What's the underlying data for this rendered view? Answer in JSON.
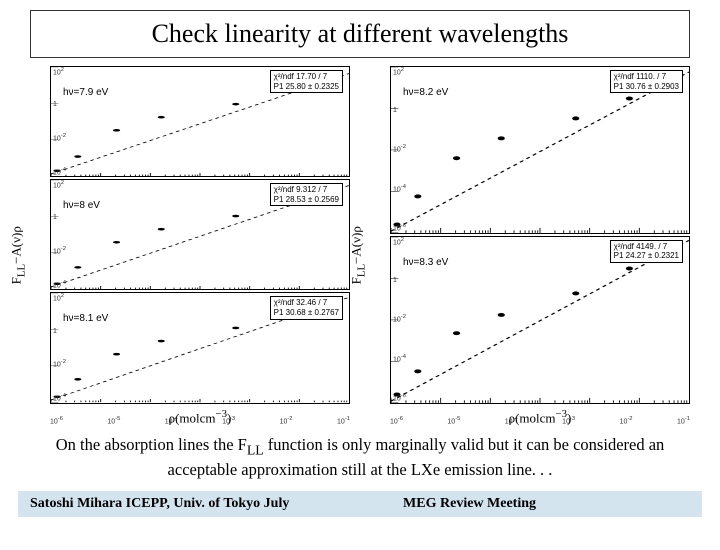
{
  "title": "Check linearity at different wavelengths",
  "ylabel_html": "F<sub>LL</sub>−A(ν)ρ",
  "xlabel_html": "ρ(molcm<sup>−3</sup>)",
  "columns": [
    {
      "panels": [
        {
          "hv": "hν=7.9 eV",
          "chi2": "χ²/ndf 17.70  /  7",
          "p1": "P1          25.80 ±     0.2325",
          "points": [
            [
              0.02,
              0.95
            ],
            [
              0.09,
              0.82
            ],
            [
              0.22,
              0.58
            ],
            [
              0.37,
              0.46
            ],
            [
              0.62,
              0.34
            ],
            [
              0.8,
              0.22
            ],
            [
              0.88,
              0.16
            ],
            [
              0.94,
              0.11
            ]
          ],
          "line": [
            [
              0.0,
              0.98
            ],
            [
              1.0,
              0.06
            ]
          ]
        },
        {
          "hv": "hν=8 eV",
          "chi2": "χ²/ndf 9.312  /  7",
          "p1": "P1          28.53 ±     0.2569",
          "points": [
            [
              0.02,
              0.95
            ],
            [
              0.09,
              0.8
            ],
            [
              0.22,
              0.57
            ],
            [
              0.37,
              0.45
            ],
            [
              0.62,
              0.33
            ],
            [
              0.8,
              0.21
            ],
            [
              0.88,
              0.15
            ],
            [
              0.94,
              0.1
            ]
          ],
          "line": [
            [
              0.0,
              0.98
            ],
            [
              1.0,
              0.05
            ]
          ]
        },
        {
          "hv": "hν=8.1 eV",
          "chi2": "χ²/ndf 32.46  /  7",
          "p1": "P1          30.68 ±     0.2767",
          "points": [
            [
              0.02,
              0.95
            ],
            [
              0.09,
              0.79
            ],
            [
              0.22,
              0.56
            ],
            [
              0.37,
              0.44
            ],
            [
              0.62,
              0.32
            ],
            [
              0.8,
              0.2
            ],
            [
              0.88,
              0.14
            ],
            [
              0.94,
              0.09
            ]
          ],
          "line": [
            [
              0.0,
              0.98
            ],
            [
              1.0,
              0.04
            ]
          ]
        }
      ]
    },
    {
      "panels": [
        {
          "hv": "hν=8.2 eV",
          "chi2": "χ²/ndf 1110.  /  7",
          "p1": "P1          30.76 ±     0.2903",
          "points": [
            [
              0.02,
              0.95
            ],
            [
              0.09,
              0.78
            ],
            [
              0.22,
              0.55
            ],
            [
              0.37,
              0.43
            ],
            [
              0.62,
              0.31
            ],
            [
              0.8,
              0.19
            ],
            [
              0.88,
              0.13
            ],
            [
              0.94,
              0.07
            ]
          ],
          "line": [
            [
              0.0,
              0.99
            ],
            [
              1.0,
              0.03
            ]
          ]
        },
        {
          "hv": "hν=8.3 eV",
          "chi2": "χ²/ndf 4149.  /  7",
          "p1": "P1          24.27 ±     0.2321",
          "points": [
            [
              0.02,
              0.95
            ],
            [
              0.09,
              0.81
            ],
            [
              0.22,
              0.58
            ],
            [
              0.37,
              0.47
            ],
            [
              0.62,
              0.34
            ],
            [
              0.8,
              0.19
            ],
            [
              0.88,
              0.1
            ],
            [
              0.94,
              0.03
            ]
          ],
          "line": [
            [
              0.0,
              0.99
            ],
            [
              1.0,
              0.02
            ]
          ]
        }
      ]
    }
  ],
  "xticks_html": [
    "10<sup>-6</sup>",
    "10<sup>-5</sup>",
    "10<sup>-4</sup>",
    "10<sup>-3</sup>",
    "10<sup>-2</sup>",
    "10<sup>-1</sup>"
  ],
  "yticks_l_html": [
    "10<sup>2</sup>",
    "1",
    "10<sup>-2</sup>",
    "10<sup>-4</sup>"
  ],
  "yticks_r_html": [
    "10<sup>2</sup>",
    "1",
    "10<sup>-2</sup>",
    "10<sup>-4</sup>",
    "10<sup>-6</sup>"
  ],
  "caption_html": "On the absorption lines the F<sub>LL</sub> function is only marginally valid  but it can be considered an acceptable approximation still at the LXe emission line. . .",
  "footer_left": "Satoshi Mihara ICEPP, Univ. of Tokyo July",
  "footer_right": "MEG Review Meeting",
  "style": {
    "line_color": "#000000",
    "point_color": "#000000",
    "footer_bg": "#d4e4ef",
    "title_border": "#333333"
  }
}
